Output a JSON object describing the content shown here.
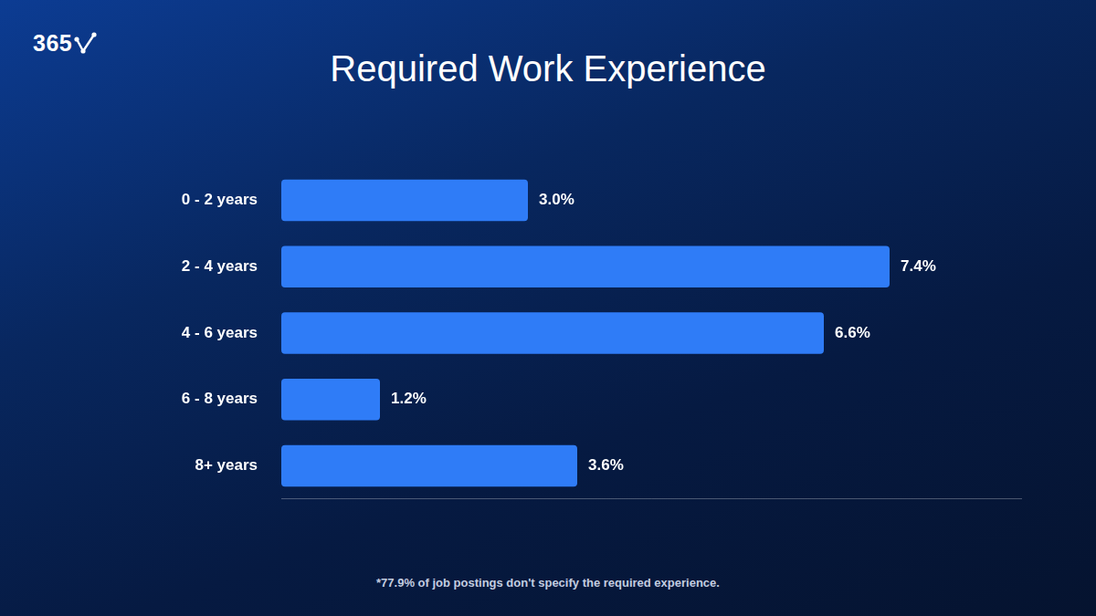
{
  "chart_data": {
    "type": "bar",
    "title": "Required Work Experience",
    "logo": "365",
    "footnote": "*77.9% of job postings don't specify the required experience.",
    "categories": [
      "0 - 2 years",
      "2 - 4 years",
      "4 - 6 years",
      "6 - 8 years",
      "8+ years"
    ],
    "values": [
      3.0,
      7.4,
      6.6,
      1.2,
      3.6
    ],
    "value_labels": [
      "3.0%",
      "7.4%",
      "6.6%",
      "1.2%",
      "3.6%"
    ],
    "color": "#2f7cf7",
    "orientation": "horizontal",
    "xlim": [
      0,
      9
    ],
    "xticks": [],
    "grid": false,
    "data_labels": true,
    "tick_labels": "y"
  }
}
